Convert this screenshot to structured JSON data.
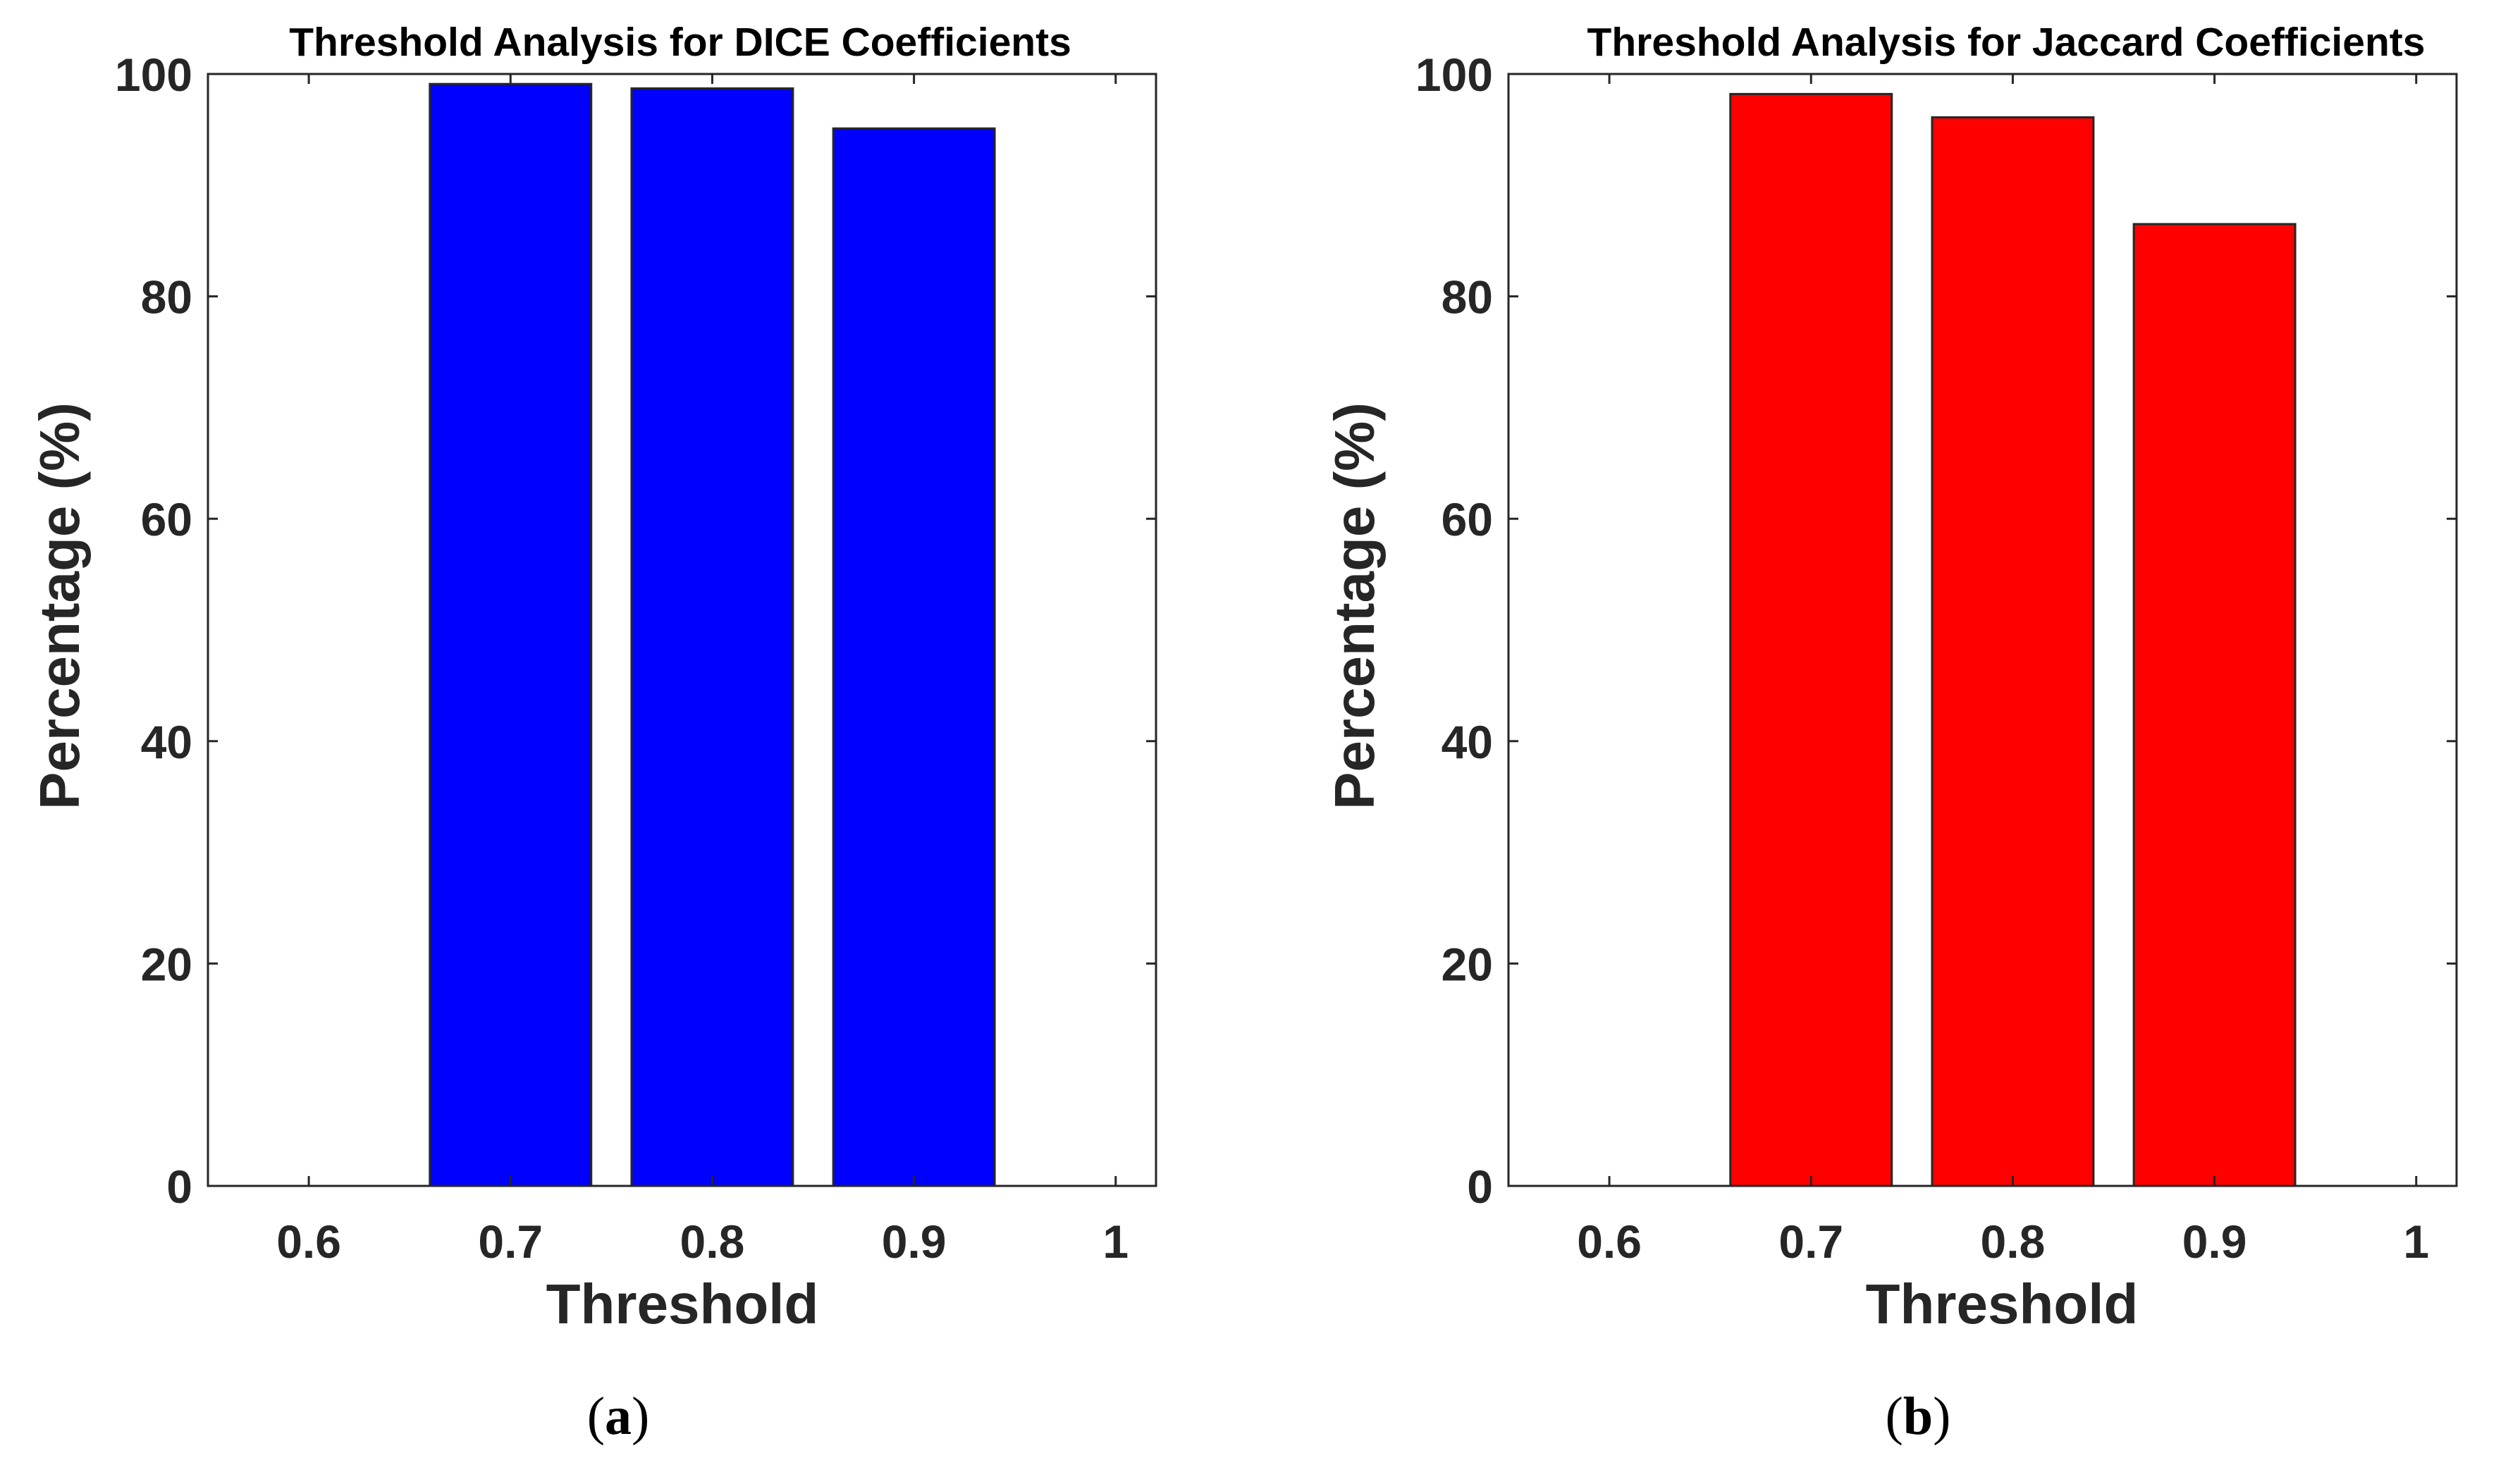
{
  "chart_data": [
    {
      "type": "bar",
      "title": "Threshold Analysis for DICE Coefficients",
      "xlabel": "Threshold",
      "ylabel": "Percentage (%)",
      "categories": [
        0.7,
        0.8,
        0.9
      ],
      "values": [
        99.1,
        98.7,
        95.1
      ],
      "xlim": [
        0.55,
        1.02
      ],
      "ylim": [
        0,
        100
      ],
      "xticks": [
        "0.6",
        "0.7",
        "0.8",
        "0.9",
        "1"
      ],
      "yticks": [
        "0",
        "20",
        "40",
        "60",
        "80",
        "100"
      ],
      "bar_color": "#0000ff",
      "grid": false,
      "caption_open": "(",
      "caption_letter": "a",
      "caption_close": ")"
    },
    {
      "type": "bar",
      "title": "Threshold Analysis for Jaccard Coefficients",
      "xlabel": "Threshold",
      "ylabel": "Percentage (%)",
      "categories": [
        0.7,
        0.8,
        0.9
      ],
      "values": [
        98.2,
        96.1,
        86.5
      ],
      "xlim": [
        0.55,
        1.02
      ],
      "ylim": [
        0,
        100
      ],
      "xticks": [
        "0.6",
        "0.7",
        "0.8",
        "0.9",
        "1"
      ],
      "yticks": [
        "0",
        "20",
        "40",
        "60",
        "80",
        "100"
      ],
      "bar_color": "#ff0000",
      "grid": false,
      "caption_open": "(",
      "caption_letter": "b",
      "caption_close": ")"
    }
  ]
}
